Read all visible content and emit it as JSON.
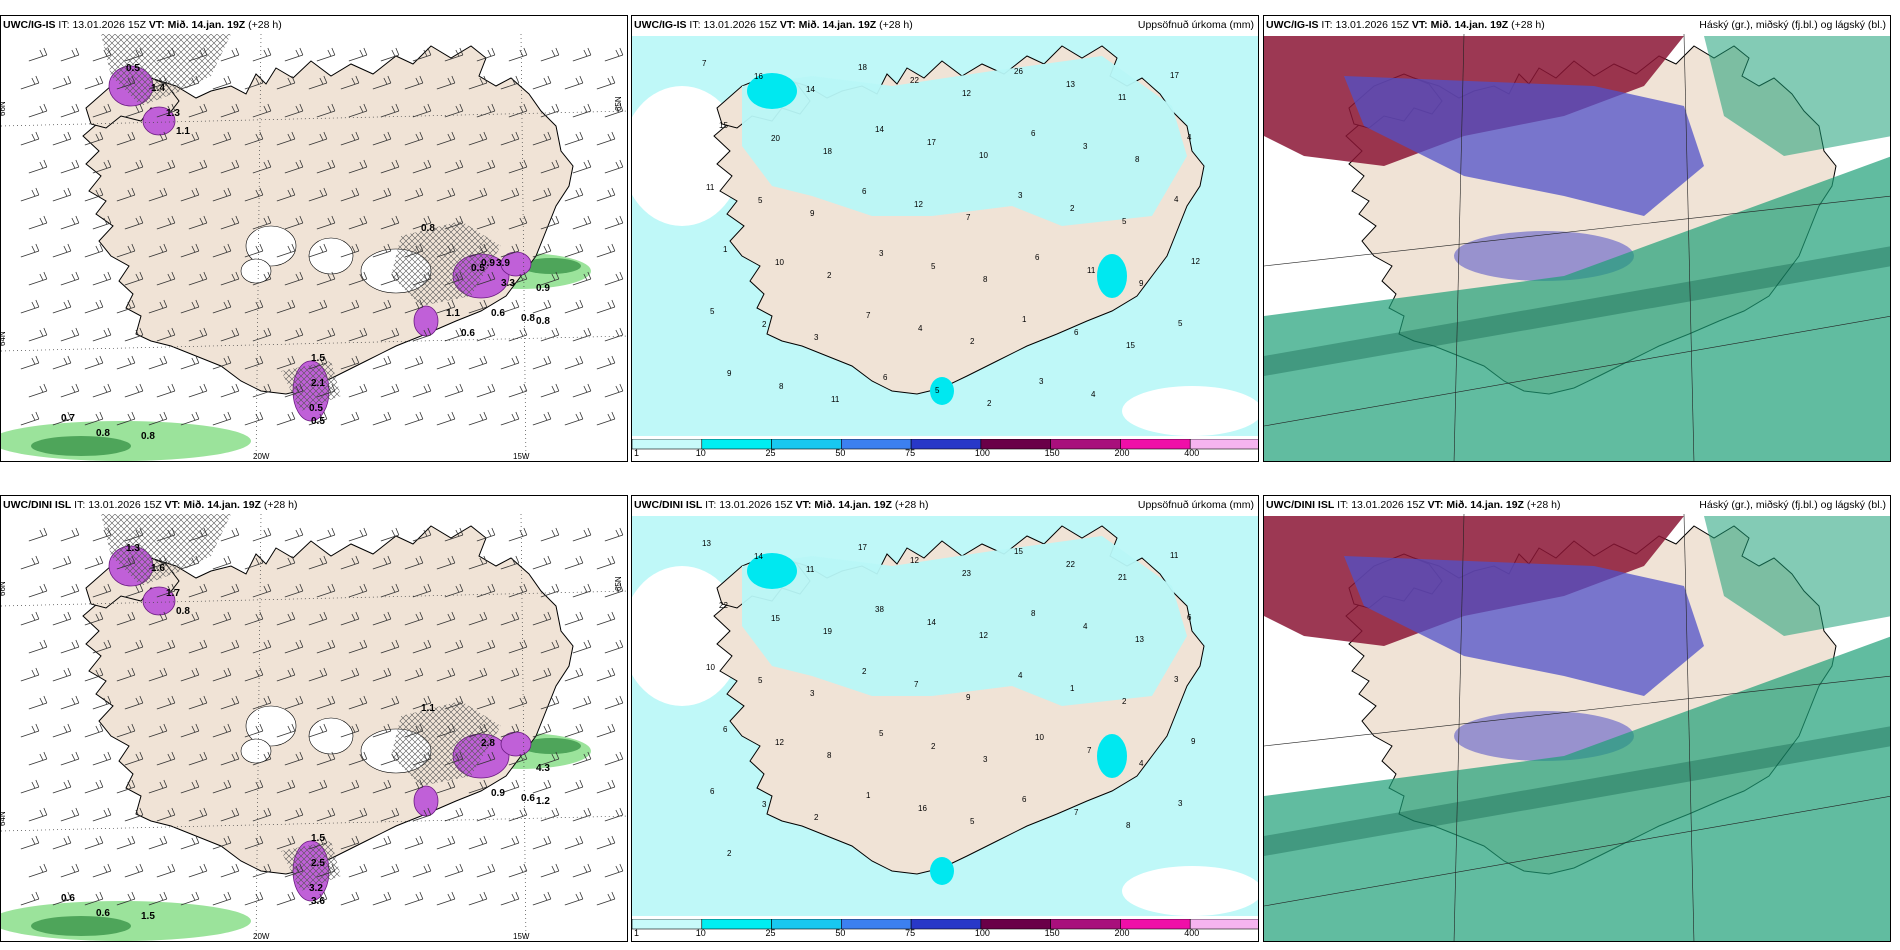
{
  "colors": {
    "land": "#f0e3d6",
    "sea": "#ffffff",
    "precip_light": "#b8f7f7",
    "precip_cyan": "#00e8f0",
    "snow_purple": "#c060d8",
    "rain_green": "#9be39b",
    "rain_green_dark": "#2e8a3e",
    "cloud_high": "#8b1535",
    "cloud_mid": "#5050c8",
    "cloud_low": "#1ea078"
  },
  "panels": [
    {
      "model": "UWC/IG-IS",
      "it_prefix": "IT:",
      "it_value": "13.01.2026 15Z",
      "vt_prefix": "VT:",
      "vt_value": "Mið. 14.jan. 19Z",
      "lead": "(+28 h)",
      "kind": "wind",
      "precip_labels": [
        "0.5",
        "1.4",
        "1.3",
        "1.1",
        "0.7",
        "0.8",
        "0.8",
        "0.5",
        "0.5",
        "0.9",
        "0.8",
        "0.6",
        "0.8",
        "0.9",
        "1.5",
        "2.1",
        "0.8",
        "0.5",
        "3.9",
        "3.3",
        "1.1",
        "0.6"
      ],
      "lat_labels": [
        "66N",
        "64N",
        "65N"
      ],
      "lon_labels": [
        "20W",
        "15W"
      ]
    },
    {
      "model": "UWC/IG-IS",
      "it_prefix": "IT:",
      "it_value": "13.01.2026 15Z",
      "vt_prefix": "VT:",
      "vt_value": "Mið. 14.jan. 19Z",
      "lead": "(+28 h)",
      "kind": "precip",
      "right_title": "Uppsöfnuð úrkoma (mm)",
      "numbers": [
        "7",
        "16",
        "14",
        "18",
        "22",
        "12",
        "26",
        "13",
        "11",
        "17",
        "15",
        "20",
        "18",
        "14",
        "17",
        "10",
        "6",
        "3",
        "8",
        "4",
        "11",
        "5",
        "9",
        "6",
        "12",
        "7",
        "3",
        "2",
        "5",
        "4",
        "1",
        "10",
        "2",
        "3",
        "5",
        "8",
        "6",
        "11",
        "9",
        "12",
        "5",
        "2",
        "3",
        "7",
        "4",
        "2",
        "1",
        "6",
        "15",
        "5",
        "9",
        "8",
        "11",
        "6",
        "5",
        "2",
        "3",
        "4"
      ]
    },
    {
      "model": "UWC/IG-IS",
      "it_prefix": "IT:",
      "it_value": "13.01.2026 15Z",
      "vt_prefix": "VT:",
      "vt_value": "Mið. 14.jan. 19Z",
      "lead": "(+28 h)",
      "kind": "cloud",
      "right_title": "Háský (gr.), miðský (fj.bl.) og lágský (bl.)"
    },
    {
      "model": "UWC/DINI ISL",
      "it_prefix": "IT:",
      "it_value": "13.01.2026 15Z",
      "vt_prefix": "VT:",
      "vt_value": "Mið. 14.jan. 19Z",
      "lead": "(+28 h)",
      "kind": "wind",
      "precip_labels": [
        "1.3",
        "1.6",
        "1.7",
        "0.8",
        "0.6",
        "0.6",
        "1.5",
        "3.2",
        "3.6",
        "4.3",
        "0.6",
        "0.9",
        "1.2",
        "2.8",
        "1.5",
        "2.5",
        "1.1"
      ],
      "lat_labels": [
        "66N",
        "64N",
        "65N"
      ],
      "lon_labels": [
        "20W",
        "15W"
      ]
    },
    {
      "model": "UWC/DINI ISL",
      "it_prefix": "IT:",
      "it_value": "13.01.2026 15Z",
      "vt_prefix": "VT:",
      "vt_value": "Mið. 14.jan. 19Z",
      "lead": "(+28 h)",
      "kind": "precip",
      "right_title": "Uppsöfnuð úrkoma (mm)",
      "numbers": [
        "13",
        "14",
        "11",
        "17",
        "12",
        "23",
        "15",
        "22",
        "21",
        "11",
        "22",
        "15",
        "19",
        "38",
        "14",
        "12",
        "8",
        "4",
        "13",
        "6",
        "10",
        "5",
        "3",
        "2",
        "7",
        "9",
        "4",
        "1",
        "2",
        "3",
        "6",
        "12",
        "8",
        "5",
        "2",
        "3",
        "10",
        "7",
        "4",
        "9",
        "6",
        "3",
        "2",
        "1",
        "16",
        "5",
        "6",
        "7",
        "8",
        "3",
        "2"
      ]
    },
    {
      "model": "UWC/DINI ISL",
      "it_prefix": "IT:",
      "it_value": "13.01.2026 15Z",
      "vt_prefix": "VT:",
      "vt_value": "Mið. 14.jan. 19Z",
      "lead": "(+28 h)",
      "kind": "cloud",
      "right_title": "Háský (gr.), miðský (fj.bl.) og lágský (bl.)"
    }
  ],
  "colorbar": {
    "ticks": [
      "1",
      "10",
      "25",
      "50",
      "75",
      "100",
      "150",
      "200",
      "400"
    ],
    "colors": [
      "#c8fafa",
      "#00eef2",
      "#18c8f0",
      "#3c80f0",
      "#2838c8",
      "#6a0048",
      "#a8107c",
      "#f00fa8",
      "#f5b4f0"
    ]
  }
}
